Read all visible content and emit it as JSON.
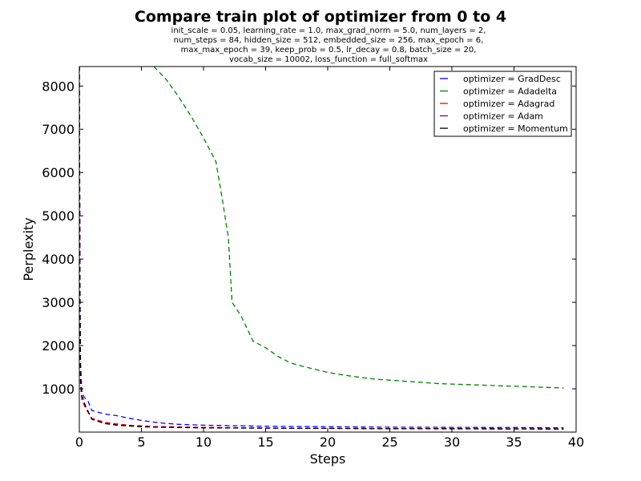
{
  "chart_data": {
    "type": "line",
    "title": "Compare train plot of optimizer from 0 to 4",
    "subtitle": [
      "init_scale = 0.05, learning_rate = 1.0, max_grad_norm = 5.0, num_layers = 2,",
      "num_steps = 84, hidden_size = 512, embedded_size = 256, max_epoch = 6,",
      "max_max_epoch = 39, keep_prob = 0.5, lr_decay = 0.8, batch_size = 20,",
      "vocab_size = 10002, loss_function = full_softmax"
    ],
    "xlabel": "Steps",
    "ylabel": "Perplexity",
    "xlim": [
      0,
      40
    ],
    "ylim": [
      0,
      8450
    ],
    "xticks": [
      0,
      5,
      10,
      15,
      20,
      25,
      30,
      35,
      40
    ],
    "yticks": [
      1000,
      2000,
      3000,
      4000,
      5000,
      6000,
      7000,
      8000
    ],
    "grid": false,
    "legend_position": "top-right",
    "series": [
      {
        "name": "optimizer = GradDesc",
        "color": "#0000ff",
        "points": [
          [
            0,
            8450
          ],
          [
            0.05,
            3500
          ],
          [
            0.1,
            1600
          ],
          [
            0.2,
            950
          ],
          [
            0.4,
            800
          ],
          [
            0.7,
            720
          ],
          [
            1,
            500
          ],
          [
            2,
            420
          ],
          [
            3,
            380
          ],
          [
            4,
            320
          ],
          [
            5,
            270
          ],
          [
            6,
            230
          ],
          [
            7,
            200
          ],
          [
            8,
            180
          ],
          [
            9,
            170
          ],
          [
            10,
            160
          ],
          [
            12,
            150
          ],
          [
            15,
            135
          ],
          [
            20,
            125
          ],
          [
            25,
            115
          ],
          [
            30,
            110
          ],
          [
            35,
            105
          ],
          [
            39,
            100
          ]
        ]
      },
      {
        "name": "optimizer = Adadelta",
        "color": "#008000",
        "points": [
          [
            6,
            8450
          ],
          [
            7,
            8150
          ],
          [
            8,
            7750
          ],
          [
            9,
            7300
          ],
          [
            10,
            6800
          ],
          [
            11,
            6250
          ],
          [
            11.5,
            5400
          ],
          [
            12,
            4500
          ],
          [
            12.3,
            3000
          ],
          [
            13,
            2700
          ],
          [
            14,
            2100
          ],
          [
            15,
            1950
          ],
          [
            16,
            1750
          ],
          [
            17,
            1600
          ],
          [
            18,
            1520
          ],
          [
            19,
            1450
          ],
          [
            20,
            1380
          ],
          [
            21,
            1330
          ],
          [
            22,
            1290
          ],
          [
            23,
            1250
          ],
          [
            24,
            1220
          ],
          [
            25,
            1200
          ],
          [
            26,
            1180
          ],
          [
            27,
            1160
          ],
          [
            28,
            1140
          ],
          [
            29,
            1120
          ],
          [
            30,
            1110
          ],
          [
            31,
            1100
          ],
          [
            32,
            1090
          ],
          [
            33,
            1080
          ],
          [
            34,
            1070
          ],
          [
            35,
            1060
          ],
          [
            36,
            1050
          ],
          [
            37,
            1040
          ],
          [
            38,
            1030
          ],
          [
            39,
            1020
          ]
        ]
      },
      {
        "name": "optimizer = Adagrad",
        "color": "#ff0000",
        "points": [
          [
            0,
            8450
          ],
          [
            0.05,
            3000
          ],
          [
            0.1,
            1200
          ],
          [
            0.2,
            750
          ],
          [
            0.5,
            550
          ],
          [
            1,
            320
          ],
          [
            2,
            230
          ],
          [
            3,
            190
          ],
          [
            4,
            160
          ],
          [
            5,
            145
          ],
          [
            6,
            130
          ],
          [
            8,
            120
          ],
          [
            10,
            110
          ],
          [
            15,
            95
          ],
          [
            20,
            85
          ],
          [
            25,
            80
          ],
          [
            30,
            75
          ],
          [
            35,
            72
          ],
          [
            39,
            70
          ]
        ]
      },
      {
        "name": "optimizer = Adam",
        "color": "#800080",
        "points": [
          [
            0,
            8450
          ],
          [
            0.05,
            2500
          ],
          [
            0.1,
            1100
          ],
          [
            0.2,
            800
          ],
          [
            0.5,
            600
          ],
          [
            1,
            300
          ],
          [
            2,
            210
          ],
          [
            3,
            170
          ],
          [
            4,
            150
          ],
          [
            5,
            130
          ],
          [
            6,
            120
          ],
          [
            8,
            110
          ],
          [
            10,
            100
          ],
          [
            15,
            90
          ],
          [
            20,
            85
          ],
          [
            25,
            80
          ],
          [
            30,
            78
          ],
          [
            35,
            75
          ],
          [
            39,
            72
          ]
        ]
      },
      {
        "name": "optimizer = Momentum",
        "color": "#000000",
        "points": [
          [
            0,
            8450
          ],
          [
            0.05,
            3000
          ],
          [
            0.1,
            1300
          ],
          [
            0.2,
            850
          ],
          [
            0.5,
            600
          ],
          [
            1,
            300
          ],
          [
            2,
            200
          ],
          [
            3,
            160
          ],
          [
            4,
            140
          ],
          [
            5,
            125
          ],
          [
            6,
            115
          ],
          [
            8,
            105
          ],
          [
            10,
            98
          ],
          [
            15,
            90
          ],
          [
            20,
            85
          ],
          [
            25,
            80
          ],
          [
            30,
            77
          ],
          [
            35,
            74
          ],
          [
            39,
            72
          ]
        ]
      }
    ]
  }
}
